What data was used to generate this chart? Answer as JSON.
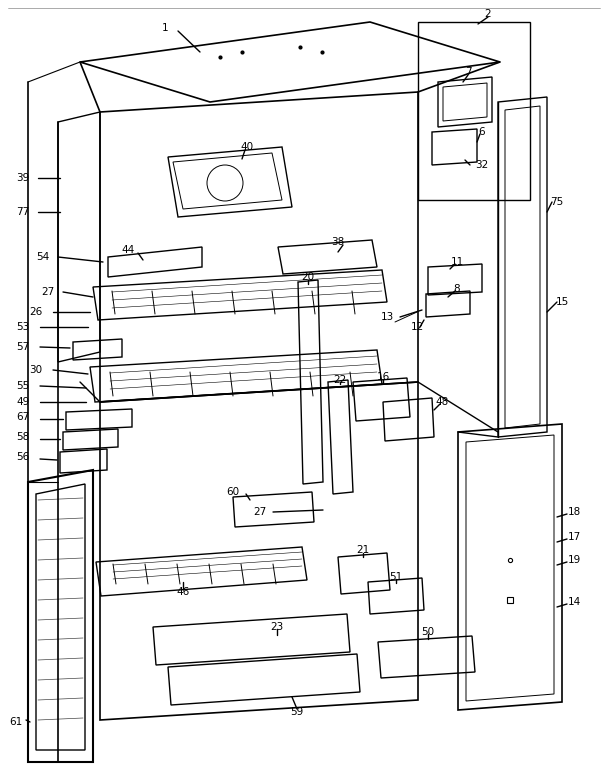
{
  "bg_color": "#ffffff",
  "figsize": [
    6.08,
    7.68
  ],
  "dpi": 100
}
